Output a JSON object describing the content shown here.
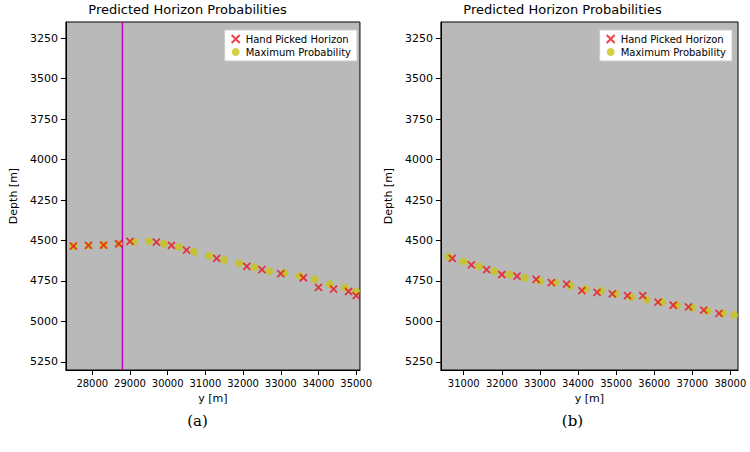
{
  "chart_data": [
    {
      "type": "scatter",
      "title": "Predicted Horizon Probabilities",
      "panel": "(a)",
      "x_label": "y [m]",
      "y_label": "Depth [m]",
      "xlim": [
        27300,
        35100
      ],
      "xticks": [
        28000,
        29000,
        30000,
        31000,
        32000,
        33000,
        34000,
        35000
      ],
      "ylim": [
        5300,
        3150
      ],
      "yticks": [
        3250,
        3500,
        3750,
        4000,
        4250,
        4500,
        4750,
        5000,
        5250
      ],
      "grid": false,
      "legend": "upper right",
      "vlines": [
        {
          "x": 28800,
          "color": "#c000c0"
        }
      ],
      "series": [
        {
          "name": "Hand Picked Horizon",
          "color": "#e8141b",
          "marker": "x",
          "x": [
            27500,
            27900,
            28300,
            28700,
            29000,
            29700,
            30100,
            30500,
            31300,
            32100,
            32500,
            33000,
            33600,
            34000,
            34400,
            34800,
            35000
          ],
          "values": [
            4535,
            4530,
            4528,
            4520,
            4505,
            4510,
            4530,
            4560,
            4610,
            4660,
            4680,
            4705,
            4730,
            4790,
            4800,
            4815,
            4840
          ]
        },
        {
          "name": "Maximum Probability",
          "color": "#c8c41a",
          "marker": "circle",
          "x": [
            27500,
            27900,
            28300,
            28700,
            29100,
            29500,
            29900,
            30300,
            30700,
            31100,
            31500,
            31900,
            32300,
            32700,
            33100,
            33500,
            33900,
            34300,
            34700,
            35000
          ],
          "values": [
            4535,
            4532,
            4528,
            4520,
            4508,
            4505,
            4520,
            4540,
            4570,
            4595,
            4620,
            4640,
            4665,
            4690,
            4700,
            4720,
            4740,
            4770,
            4790,
            4815
          ]
        }
      ]
    },
    {
      "type": "scatter",
      "title": "Predicted Horizon Probabilities",
      "panel": "(b)",
      "x_label": "y [m]",
      "y_label": "Depth [m]",
      "xlim": [
        30400,
        38200
      ],
      "xticks": [
        31000,
        32000,
        33000,
        34000,
        35000,
        36000,
        37000,
        38000
      ],
      "ylim": [
        5300,
        3150
      ],
      "yticks": [
        3250,
        3500,
        3750,
        4000,
        4250,
        4500,
        4750,
        5000,
        5250
      ],
      "grid": false,
      "legend": "upper right",
      "series": [
        {
          "name": "Hand Picked Horizon",
          "color": "#e8141b",
          "marker": "x",
          "x": [
            30700,
            31200,
            31600,
            32000,
            32400,
            32900,
            33300,
            33700,
            34100,
            34500,
            34900,
            35300,
            35700,
            36100,
            36500,
            36900,
            37300,
            37700
          ],
          "values": [
            4610,
            4650,
            4680,
            4710,
            4720,
            4740,
            4760,
            4770,
            4810,
            4820,
            4830,
            4840,
            4840,
            4880,
            4900,
            4910,
            4930,
            4950
          ]
        },
        {
          "name": "Maximum Probability",
          "color": "#c8c41a",
          "marker": "circle",
          "x": [
            30600,
            31000,
            31400,
            31800,
            32200,
            32600,
            33000,
            33400,
            33800,
            34200,
            34600,
            35000,
            35400,
            35800,
            36200,
            36600,
            37000,
            37400,
            37800,
            38100
          ],
          "values": [
            4600,
            4630,
            4660,
            4690,
            4710,
            4730,
            4750,
            4760,
            4780,
            4800,
            4810,
            4830,
            4850,
            4865,
            4880,
            4900,
            4915,
            4935,
            4950,
            4960
          ]
        }
      ]
    }
  ]
}
